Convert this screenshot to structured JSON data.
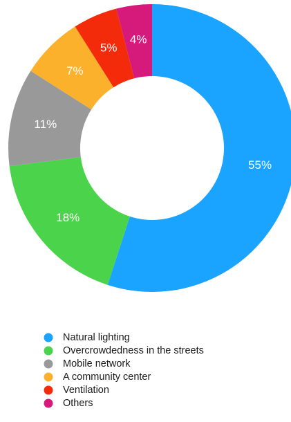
{
  "chart_data": {
    "type": "pie",
    "variant": "donut",
    "categories": [
      "Natural lighting",
      "Overcrowdedness in the streets",
      "Mobile network",
      "A community center",
      "Ventilation",
      "Others"
    ],
    "values": [
      55,
      18,
      11,
      7,
      5,
      4
    ],
    "value_labels": [
      "55%",
      "18%",
      "11%",
      "7%",
      "5%",
      "4%"
    ],
    "colors": [
      "#1aa3ff",
      "#4cd34c",
      "#999999",
      "#fbb12c",
      "#f42b0a",
      "#d61a7b"
    ],
    "legend_position": "bottom-left"
  }
}
